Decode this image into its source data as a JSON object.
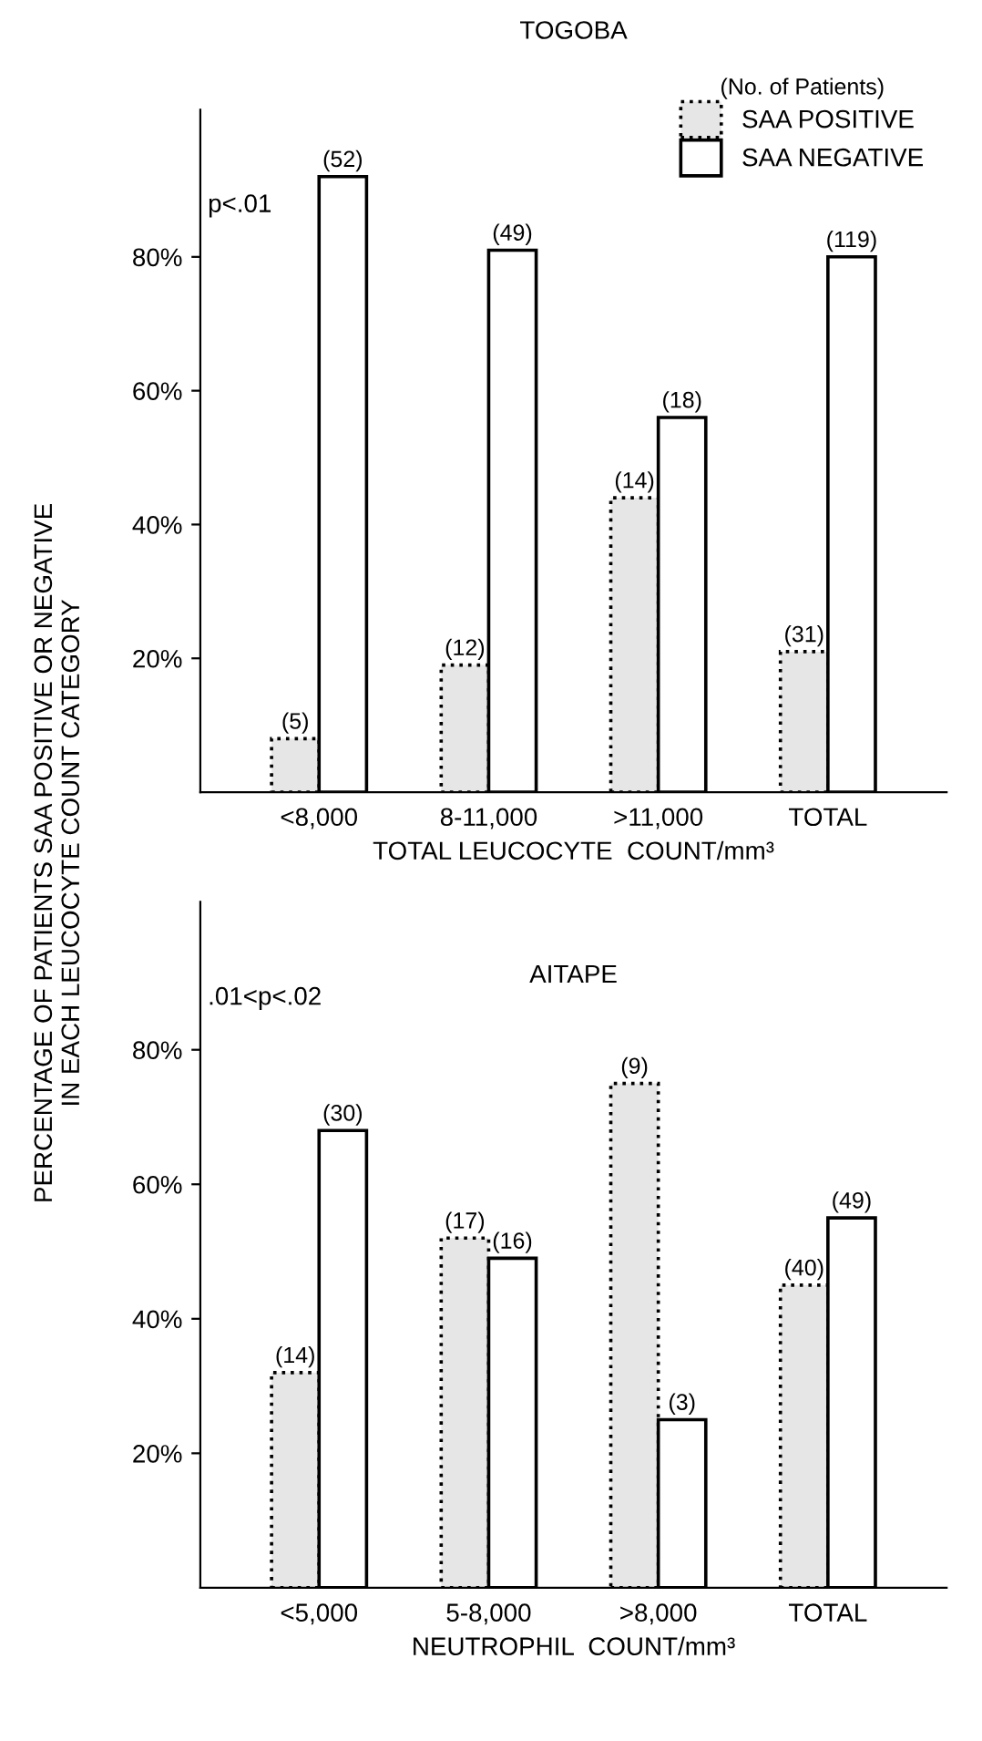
{
  "chart_data": [
    {
      "type": "bar",
      "title": "TOGOBA",
      "xlabel": "TOTAL LEUCOCYTE  COUNT/mm³",
      "ylabel": "PERCENTAGE OF PATIENTS SAA POSITIVE OR NEGATIVE\nIN EACH LEUCOCYTE COUNT CATEGORY",
      "legend_title": "(No. of Patients)",
      "legend": "top right",
      "categories": [
        "<8,000",
        "8-11,000",
        ">11,000",
        "TOTAL"
      ],
      "series": [
        {
          "name": "SAA POSITIVE",
          "color": "#e6e6e6",
          "line_style": "dotted",
          "values": [
            8,
            19,
            44,
            21
          ]
        },
        {
          "name": "SAA NEGATIVE",
          "color": "#ffffff",
          "line_style": "solid",
          "values": [
            92,
            81,
            56,
            80
          ]
        }
      ],
      "ylim": [
        0,
        102
      ],
      "yticks": [
        {
          "value": 20,
          "label": "20%"
        },
        {
          "value": 40,
          "label": "40%"
        },
        {
          "value": 60,
          "label": "60%"
        },
        {
          "value": 80,
          "label": "80%"
        }
      ],
      "annotations": [
        "p<.01",
        {
          "text": "(5)",
          "x": "<8,000",
          "y": 8
        },
        {
          "text": "(52)",
          "x": "<8,000",
          "y": 92
        },
        {
          "text": "(12)",
          "x": "8-11,000",
          "y": 19
        },
        {
          "text": "(49)",
          "x": "8-11,000",
          "y": 81
        },
        {
          "text": "(14)",
          "x": ">11,000",
          "y": 44
        },
        {
          "text": "(18)",
          "x": ">11,000",
          "y": 56
        },
        {
          "text": "(31)",
          "x": "TOTAL",
          "y": 21
        },
        {
          "text": "(119)",
          "x": "TOTAL",
          "y": 80
        }
      ]
    },
    {
      "type": "bar",
      "title": "AITAPE",
      "xlabel": "NEUTROPHIL  COUNT/mm³",
      "categories": [
        "<5,000",
        "5-8,000",
        ">8,000",
        "TOTAL"
      ],
      "series": [
        {
          "color": "#e6e6e6",
          "line_style": "dotted",
          "values": [
            32,
            52,
            75,
            45
          ]
        },
        {
          "color": "#ffffff",
          "line_style": "solid",
          "values": [
            68,
            49,
            25,
            55
          ]
        }
      ],
      "ylim": [
        0,
        102
      ],
      "yticks": [
        {
          "value": 20,
          "label": "20%"
        },
        {
          "value": 40,
          "label": "40%"
        },
        {
          "value": 60,
          "label": "60%"
        },
        {
          "value": 80,
          "label": "80%"
        }
      ],
      "annotations": [
        ".01<p<.02",
        {
          "text": "(14)",
          "x": "<5,000",
          "y": 32
        },
        {
          "text": "(30)",
          "x": "<5,000",
          "y": 68
        },
        {
          "text": "(17)",
          "x": "5-8,000",
          "y": 52
        },
        {
          "text": "(16)",
          "x": "5-8,000",
          "y": 49
        },
        {
          "text": "(9)",
          "x": ">8,000",
          "y": 75
        },
        {
          "text": "(3)",
          "x": ">8,000",
          "y": 25
        },
        {
          "text": "(40)",
          "x": "TOTAL",
          "y": 45
        },
        {
          "text": "(49)",
          "x": "TOTAL",
          "y": 55
        }
      ]
    }
  ]
}
